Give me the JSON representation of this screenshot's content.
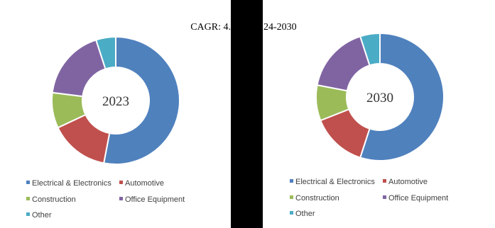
{
  "chart_data": [
    {
      "type": "pie",
      "title": "2023",
      "annotations": [
        "CAGR:  4.",
        "24-2030"
      ],
      "categories": [
        "Electrical & Electronics",
        "Automotive",
        "Construction",
        "Office Equipment",
        "Other"
      ],
      "values": [
        53,
        15,
        9,
        18,
        5
      ],
      "colors": [
        "#4f81bd",
        "#c0504d",
        "#9bbb59",
        "#8064a2",
        "#4bacc6"
      ]
    },
    {
      "type": "pie",
      "title": "2030",
      "categories": [
        "Electrical & Electronics",
        "Automotive",
        "Construction",
        "Office Equipment",
        "Other"
      ],
      "values": [
        55,
        14,
        9,
        17,
        5
      ],
      "colors": [
        "#4f81bd",
        "#c0504d",
        "#9bbb59",
        "#8064a2",
        "#4bacc6"
      ]
    }
  ]
}
